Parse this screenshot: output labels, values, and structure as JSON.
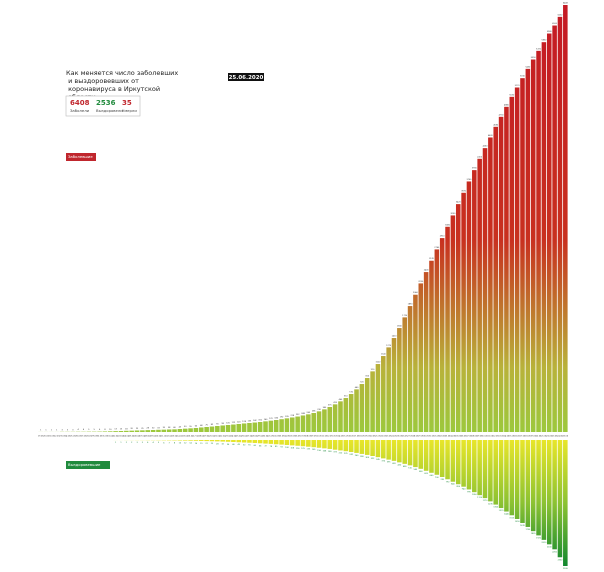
{
  "chart_data": {
    "type": "bar",
    "title": "Как меняется число заболевших и выздоровевших от коронавируса в Иркутской области",
    "date": "25.06.2020",
    "summary": [
      {
        "value": "6408",
        "label": "Заболели",
        "color": "#c0262d"
      },
      {
        "value": "2536",
        "label": "Выздоровели",
        "color": "#1f8a3c"
      },
      {
        "value": "35",
        "label": "Умерли",
        "color": "#c0262d"
      }
    ],
    "categories": [
      "19.03",
      "20.03",
      "21.03",
      "22.03",
      "23.03",
      "24.03",
      "25.03",
      "26.03",
      "27.03",
      "28.03",
      "29.03",
      "30.03",
      "31.03",
      "01.04",
      "02.04",
      "03.04",
      "04.04",
      "05.04",
      "06.04",
      "07.04",
      "08.04",
      "09.04",
      "10.04",
      "11.04",
      "12.04",
      "13.04",
      "14.04",
      "15.04",
      "16.04",
      "17.04",
      "18.04",
      "19.04",
      "20.04",
      "21.04",
      "22.04",
      "23.04",
      "24.04",
      "25.04",
      "26.04",
      "27.04",
      "28.04",
      "29.04",
      "30.04",
      "01.05",
      "02.05",
      "03.05",
      "04.05",
      "05.05",
      "06.05",
      "07.05",
      "08.05",
      "09.05",
      "10.05",
      "11.05",
      "12.05",
      "13.05",
      "14.05",
      "15.05",
      "16.05",
      "17.05",
      "18.05",
      "19.05",
      "20.05",
      "21.05",
      "22.05",
      "23.05",
      "24.05",
      "25.05",
      "26.05",
      "27.05",
      "28.05",
      "29.05",
      "30.05",
      "31.05",
      "01.06",
      "02.06",
      "03.06",
      "04.06",
      "05.06",
      "06.06",
      "07.06",
      "08.06",
      "09.06",
      "10.06",
      "11.06",
      "12.06",
      "13.06",
      "14.06",
      "15.06",
      "16.06",
      "17.06",
      "18.06",
      "19.06",
      "20.06",
      "21.06",
      "22.06",
      "23.06",
      "24.06",
      "25.06"
    ],
    "series": [
      {
        "name": "Заболевшие",
        "color": "#c0262d",
        "values": [
          1,
          1,
          1,
          1,
          3,
          3,
          3,
          4,
          4,
          5,
          5,
          6,
          8,
          10,
          13,
          15,
          18,
          20,
          23,
          25,
          28,
          30,
          33,
          35,
          38,
          40,
          45,
          50,
          55,
          60,
          68,
          75,
          82,
          90,
          98,
          105,
          112,
          120,
          128,
          135,
          142,
          150,
          160,
          170,
          180,
          192,
          205,
          218,
          232,
          248,
          265,
          285,
          310,
          340,
          375,
          415,
          460,
          510,
          570,
          640,
          720,
          810,
          910,
          1020,
          1140,
          1270,
          1410,
          1560,
          1720,
          1890,
          2060,
          2230,
          2400,
          2570,
          2740,
          2910,
          3080,
          3250,
          3420,
          3590,
          3760,
          3930,
          4100,
          4260,
          4420,
          4580,
          4730,
          4880,
          5030,
          5170,
          5310,
          5450,
          5590,
          5720,
          5850,
          5980,
          6100,
          6230,
          6408
        ]
      },
      {
        "name": "Выздоровевшие",
        "color": "#1f8a3c",
        "values": [
          null,
          null,
          null,
          null,
          null,
          null,
          null,
          null,
          null,
          null,
          null,
          null,
          null,
          null,
          1,
          1,
          2,
          2,
          3,
          3,
          4,
          4,
          5,
          6,
          7,
          8,
          10,
          12,
          14,
          16,
          19,
          22,
          25,
          28,
          32,
          36,
          40,
          45,
          50,
          55,
          60,
          66,
          72,
          78,
          85,
          92,
          100,
          108,
          116,
          125,
          135,
          145,
          156,
          168,
          180,
          195,
          210,
          225,
          242,
          260,
          280,
          300,
          322,
          345,
          370,
          395,
          420,
          450,
          480,
          510,
          545,
          580,
          620,
          660,
          700,
          745,
          790,
          840,
          890,
          940,
          995,
          1050,
          1110,
          1170,
          1235,
          1300,
          1370,
          1440,
          1515,
          1590,
          1670,
          1750,
          1835,
          1920,
          2010,
          2100,
          2200,
          2360,
          2536
        ]
      }
    ]
  }
}
